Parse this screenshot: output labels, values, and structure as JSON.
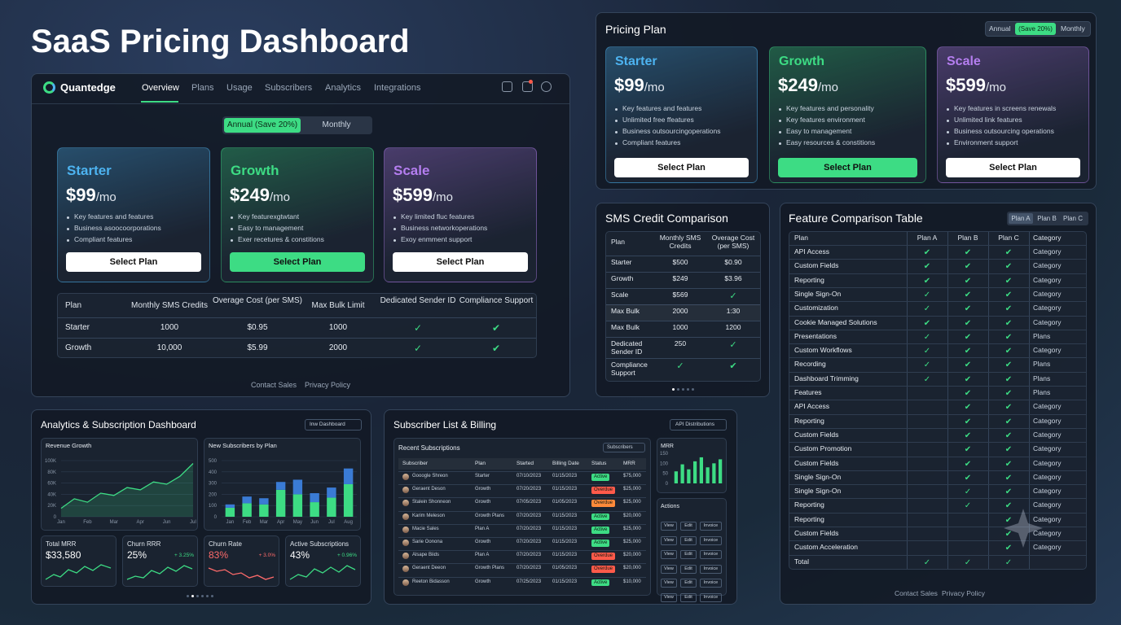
{
  "title": "SaaS Pricing Dashboard",
  "main": {
    "brand": "Quantedge",
    "nav": [
      "Overview",
      "Plans",
      "Usage",
      "Subscribers",
      "Analytics",
      "Integrations"
    ],
    "toggle": [
      "Annual (Save 20%)",
      "Monthly"
    ],
    "plans": [
      {
        "name": "Starter",
        "price": "$99",
        "period": "/mo",
        "color": "#4db3f0",
        "features": [
          "Key features and features",
          "Business asoocoorporations",
          "Compliant features"
        ],
        "button": "Select Plan"
      },
      {
        "name": "Growth",
        "price": "$249",
        "period": "/mo",
        "color": "#3ddc84",
        "highlight": true,
        "features": [
          "Key featurexgtwtant",
          "Easy to management",
          "Exer recetures & constitions"
        ],
        "button": "Select Plan"
      },
      {
        "name": "Scale",
        "price": "$599",
        "period": "/mo",
        "color": "#b57ef0",
        "features": [
          "Key limited fluc features",
          "Business networkoperations",
          "Exoy enmment support"
        ],
        "button": "Select Plan"
      }
    ],
    "table": {
      "columns": [
        "Plan",
        "Monthly SMS Credits",
        "Overage Cost (per SMS)",
        "Max Bulk Limit",
        "Dedicated Sender ID",
        "Compliance Support"
      ],
      "rows": [
        [
          "Starter",
          "1000",
          "$0.95",
          "1000",
          "✓",
          "✔"
        ],
        [
          "Growth",
          "10,000",
          "$5.99",
          "2000",
          "✓",
          "✔"
        ]
      ]
    },
    "footer": [
      "Contact Sales",
      "Privacy Policy"
    ]
  },
  "pricing": {
    "title": "Pricing Plan",
    "toggle": [
      "Annual",
      "(Save 20%)",
      "Monthly"
    ],
    "plans": [
      {
        "name": "Starter",
        "price": "$99",
        "period": "/mo",
        "color": "#4db3f0",
        "features": [
          "Key features and features",
          "Unlimited free ffeatures",
          "Business outsourcingoperations",
          "Compliant features"
        ],
        "button": "Select Plan"
      },
      {
        "name": "Growth",
        "price": "$249",
        "period": "/mo",
        "color": "#3ddc84",
        "highlight": true,
        "features": [
          "Key features and personality",
          "Key features environment",
          "Easy to management",
          "Easy resources & constitions"
        ],
        "button": "Select Plan"
      },
      {
        "name": "Scale",
        "price": "$599",
        "period": "/mo",
        "color": "#b57ef0",
        "features": [
          "Key features in screens renewals",
          "Unlimited link features",
          "Business outsourcing operations",
          "Environment support"
        ],
        "button": "Select Plan"
      }
    ]
  },
  "sms": {
    "title": "SMS Credit Comparison",
    "columns": [
      "Plan",
      "Monthly SMS Credits",
      "Overage Cost (per SMS)"
    ],
    "rows": [
      [
        "Starter",
        "$500",
        "$0.90"
      ],
      [
        "Growth",
        "$249",
        "$3.96"
      ],
      [
        "Scale",
        "$569",
        "✓"
      ],
      [
        "Max Bulk",
        "2000",
        "1:30"
      ],
      [
        "Max Bulk",
        "1000",
        "1200"
      ],
      [
        "Dedicated Sender ID",
        "250",
        "✓"
      ],
      [
        "Compliance Support",
        "✓",
        "✔"
      ]
    ]
  },
  "features": {
    "title": "Feature Comparison Table",
    "tabs": [
      "Plan A",
      "Plan B",
      "Plan C"
    ],
    "columns": [
      "Plan",
      "Plan A",
      "Plan B",
      "Plan C",
      "Category"
    ],
    "rows": [
      [
        "API Access",
        "✔",
        "✔",
        "✔",
        "Category"
      ],
      [
        "Custom Fields",
        "✔",
        "✔",
        "✔",
        "Category"
      ],
      [
        "Reporting",
        "✔",
        "✔",
        "✔",
        "Category"
      ],
      [
        "Single Sign-On",
        "✓",
        "✔",
        "✔",
        "Category"
      ],
      [
        "Customization",
        "✓",
        "✔",
        "✔",
        "Category"
      ],
      [
        "Cookie Managed Solutions",
        "✔",
        "✔",
        "✔",
        "Category"
      ],
      [
        "Presentations",
        "✓",
        "✔",
        "✔",
        "Plans"
      ],
      [
        "Custom Workflows",
        "✓",
        "✔",
        "✔",
        "Category"
      ],
      [
        "Recording",
        "✓",
        "✔",
        "✔",
        "Plans"
      ],
      [
        "Dashboard Trimming",
        "✓",
        "✔",
        "✔",
        "Plans"
      ],
      [
        "Features",
        null,
        "✔",
        "✔",
        "Plans"
      ],
      [
        "API Access",
        null,
        "✔",
        "✔",
        "Category"
      ],
      [
        "Reporting",
        null,
        "✔",
        "✔",
        "Category"
      ],
      [
        "Custom Fields",
        null,
        "✔",
        "✔",
        "Category"
      ],
      [
        "Custom Promotion",
        null,
        "✔",
        "✔",
        "Category"
      ],
      [
        "Custom Fields",
        null,
        "✔",
        "✔",
        "Category"
      ],
      [
        "Single Sign-On",
        null,
        "✔",
        "✔",
        "Category"
      ],
      [
        "Single Sign-On",
        null,
        "✓",
        "✔",
        "Category"
      ],
      [
        "Reporting",
        null,
        "✓",
        "✔",
        "Category"
      ],
      [
        "Reporting",
        null,
        null,
        "✔",
        "Category"
      ],
      [
        "Custom Fields",
        null,
        null,
        "✔",
        "Category"
      ],
      [
        "Custom Acceleration",
        null,
        null,
        "✔",
        "Category"
      ],
      [
        "Total",
        "✓",
        "✓",
        "✓",
        null
      ]
    ],
    "footer": [
      "Contact Sales",
      "Privacy Policy"
    ]
  },
  "analytics": {
    "title": "Analytics & Subscription Dashboard",
    "dropdown": "Inw Dashboard",
    "kpis": [
      {
        "label": "Total MRR",
        "value": "$33,580"
      },
      {
        "label": "Churn RRR",
        "value": "25%",
        "change": "+ 3.25%",
        "color": "#3ddc84"
      },
      {
        "label": "Churn Rate",
        "value": "83%",
        "change": "+ 3.0%",
        "color": "#ff6b6b",
        "value_color": "#ff6b6b"
      },
      {
        "label": "Active Subscriptions",
        "value": "43%",
        "change": "+ 0.96%",
        "color": "#3ddc84"
      }
    ]
  },
  "subscribers": {
    "title": "Subscriber List & Billing",
    "dropdown": "API Distributions",
    "list_title": "Recent Subscriptions",
    "list_dropdown": "Subscribers",
    "columns": [
      "Subscriber",
      "Plan",
      "Started",
      "Billing Date",
      "Status",
      "MRR"
    ],
    "rows": [
      {
        "name": "Gooogle Shreon",
        "plan": "Starter",
        "started": "07/10/2023",
        "billing": "01/15/2023",
        "status": "Active",
        "color": "#3ddc84",
        "mrr": "$75,000"
      },
      {
        "name": "Geraent Deson",
        "plan": "Growth",
        "started": "07/20/2023",
        "billing": "01/15/2023",
        "status": "Overdue",
        "color": "#ff5a4a",
        "mrr": "$25,000"
      },
      {
        "name": "Stalein Shonneon",
        "plan": "Growth",
        "started": "07/05/2023",
        "billing": "01/05/2023",
        "status": "Overdue",
        "color": "#ff8a3a",
        "mrr": "$25,000"
      },
      {
        "name": "Karim Meleson",
        "plan": "Growth Plans",
        "started": "07/20/2023",
        "billing": "01/15/2023",
        "status": "Active",
        "color": "#3ddc84",
        "mrr": "$20,000"
      },
      {
        "name": "Macie Sales",
        "plan": "Plan A",
        "started": "07/20/2023",
        "billing": "01/15/2023",
        "status": "Active",
        "color": "#3ddc84",
        "mrr": "$25,000"
      },
      {
        "name": "Sarie Oonona",
        "plan": "Growth",
        "started": "07/20/2023",
        "billing": "01/15/2023",
        "status": "Active",
        "color": "#3ddc84",
        "mrr": "$25,000"
      },
      {
        "name": "Alsape Biids",
        "plan": "Plan A",
        "started": "07/20/2023",
        "billing": "01/15/2023",
        "status": "Overdue",
        "color": "#ff5a4a",
        "mrr": "$20,000"
      },
      {
        "name": "Geraent Deeon",
        "plan": "Growth Plans",
        "started": "07/20/2023",
        "billing": "01/05/2023",
        "status": "Overdue",
        "color": "#ff5a4a",
        "mrr": "$20,000"
      },
      {
        "name": "Reeton Bidasson",
        "plan": "Growth",
        "started": "07/25/2023",
        "billing": "01/15/2023",
        "status": "Active",
        "color": "#3ddc84",
        "mrr": "$10,000"
      }
    ],
    "actions_title": "Actions",
    "actions": [
      "View",
      "Edit",
      "Invoice"
    ]
  },
  "chart_data": [
    {
      "type": "line",
      "title": "Revenue Growth",
      "categories": [
        "Jan",
        null,
        "Feb",
        null,
        "Mar",
        null,
        "Apr",
        null,
        "Jun",
        null,
        "Jul"
      ],
      "series": [
        {
          "color": "#3ddc84",
          "values": [
            15,
            32,
            26,
            42,
            38,
            52,
            48,
            62,
            58,
            72,
            95
          ]
        }
      ],
      "ylim": [
        0,
        100
      ],
      "yticks": [
        0,
        {
          "value": 20,
          "label": "20K"
        },
        {
          "value": 40,
          "label": "40K"
        },
        {
          "value": 60,
          "label": "60K"
        },
        {
          "value": 80,
          "label": "80K"
        },
        {
          "value": 100,
          "label": "100K"
        }
      ],
      "grid": true
    },
    {
      "type": "bar",
      "stacked": true,
      "title": "New Subscribers by Plan",
      "categories": [
        "Jan",
        "Feb",
        "Mar",
        "Apr",
        "May",
        "Jun",
        "Jul",
        "Aug"
      ],
      "series": [
        {
          "color": "#3ddc84",
          "values": [
            80,
            120,
            110,
            240,
            200,
            130,
            170,
            290
          ]
        },
        {
          "color": "#3a7bd5",
          "values": [
            30,
            60,
            55,
            70,
            130,
            80,
            90,
            140
          ]
        }
      ],
      "ylim": [
        0,
        500
      ],
      "yticks": [
        0,
        100,
        200,
        300,
        400,
        500
      ],
      "grid": true
    },
    {
      "type": "bar",
      "title": "MRR",
      "series": [
        {
          "color": "#3ddc84",
          "values": [
            60,
            95,
            70,
            110,
            130,
            80,
            100,
            120
          ]
        }
      ],
      "ylim": [
        0,
        150
      ],
      "yticks": [
        0,
        50,
        100,
        150
      ],
      "grid": false
    }
  ]
}
